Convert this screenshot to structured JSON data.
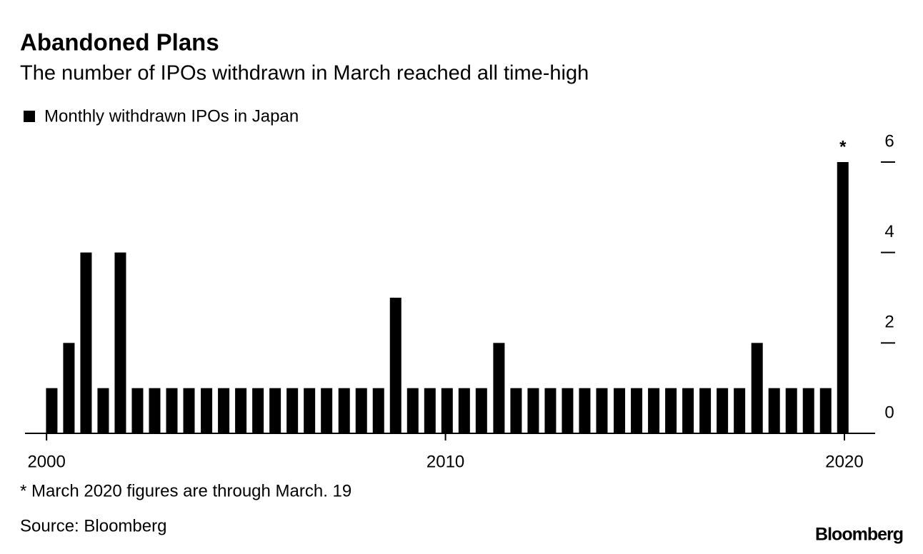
{
  "chart_data": {
    "type": "bar",
    "title": "Abandoned Plans",
    "subtitle": "The number of IPOs withdrawn in March reached all time-high",
    "annotation": "*",
    "footnote": "* March 2020 figures are through March. 19",
    "source": "Source: Bloomberg",
    "brand": "Bloomberg",
    "x": [
      2000.13,
      2000.56,
      2000.99,
      2001.42,
      2001.85,
      2002.28,
      2002.71,
      2003.14,
      2003.57,
      2004.01,
      2004.44,
      2004.87,
      2005.3,
      2005.73,
      2006.16,
      2006.59,
      2007.02,
      2007.46,
      2007.89,
      2008.32,
      2008.75,
      2009.18,
      2009.61,
      2010.04,
      2010.47,
      2010.9,
      2011.34,
      2011.77,
      2012.2,
      2012.63,
      2013.06,
      2013.49,
      2013.92,
      2014.36,
      2014.79,
      2015.22,
      2015.65,
      2016.08,
      2016.51,
      2016.94,
      2017.37,
      2017.81,
      2018.24,
      2018.67,
      2019.1,
      2019.53,
      2019.96
    ],
    "series": [
      {
        "name": "Monthly withdrawn IPOs in Japan",
        "color": "#000000",
        "values": [
          1,
          2,
          4,
          1,
          4,
          1,
          1,
          1,
          1,
          1,
          1,
          1,
          1,
          1,
          1,
          1,
          1,
          1,
          1,
          1,
          3,
          1,
          1,
          1,
          1,
          1,
          2,
          1,
          1,
          1,
          1,
          1,
          1,
          1,
          1,
          1,
          1,
          1,
          1,
          1,
          1,
          2,
          1,
          1,
          1,
          1,
          6
        ]
      }
    ],
    "xlim": [
      1999.46,
      2020.77
    ],
    "xticks": [
      2000,
      2010,
      2020
    ],
    "ylim": [
      0,
      6
    ],
    "yticks": [
      0,
      2,
      4,
      6
    ]
  }
}
